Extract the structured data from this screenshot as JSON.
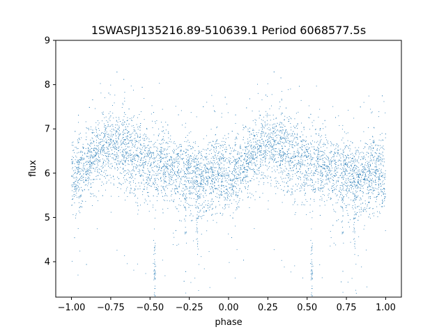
{
  "chart_data": {
    "type": "scatter",
    "title": "1SWASPJ135216.89-510639.1 Period 6068577.5s",
    "xlabel": "phase",
    "ylabel": "flux",
    "xlim": [
      -1.1,
      1.1
    ],
    "ylim": [
      3.2,
      9.0
    ],
    "x_ticks": [
      -1.0,
      -0.75,
      -0.5,
      -0.25,
      0.0,
      0.25,
      0.5,
      0.75,
      1.0
    ],
    "x_tick_labels": [
      "−1.00",
      "−0.75",
      "−0.50",
      "−0.25",
      "0.00",
      "0.25",
      "0.50",
      "0.75",
      "1.00"
    ],
    "y_ticks": [
      4,
      5,
      6,
      7,
      8,
      9
    ],
    "y_tick_labels": [
      "4",
      "5",
      "6",
      "7",
      "8",
      "9"
    ],
    "grid": false,
    "marker_color": "#1f77b4",
    "trend": {
      "phase": [
        0.0,
        0.03,
        0.06,
        0.1,
        0.15,
        0.2,
        0.25,
        0.3,
        0.35,
        0.4,
        0.45,
        0.5,
        0.53,
        0.56,
        0.6,
        0.65,
        0.7,
        0.75,
        0.8,
        0.85,
        0.9,
        0.95,
        1.0
      ],
      "flux": [
        6.0,
        5.95,
        6.05,
        6.2,
        6.4,
        6.55,
        6.6,
        6.55,
        6.45,
        6.35,
        6.3,
        6.25,
        6.15,
        6.2,
        6.15,
        6.1,
        6.05,
        5.95,
        5.85,
        5.9,
        5.95,
        6.0,
        6.0
      ]
    },
    "scatter_width": 0.42,
    "dips": [
      {
        "phase": 0.53,
        "flux": 3.5
      },
      {
        "phase": 0.53,
        "flux": 4.0
      },
      {
        "phase": 0.8,
        "flux": 4.8
      },
      {
        "phase": 0.725,
        "flux": 5.0
      }
    ]
  }
}
